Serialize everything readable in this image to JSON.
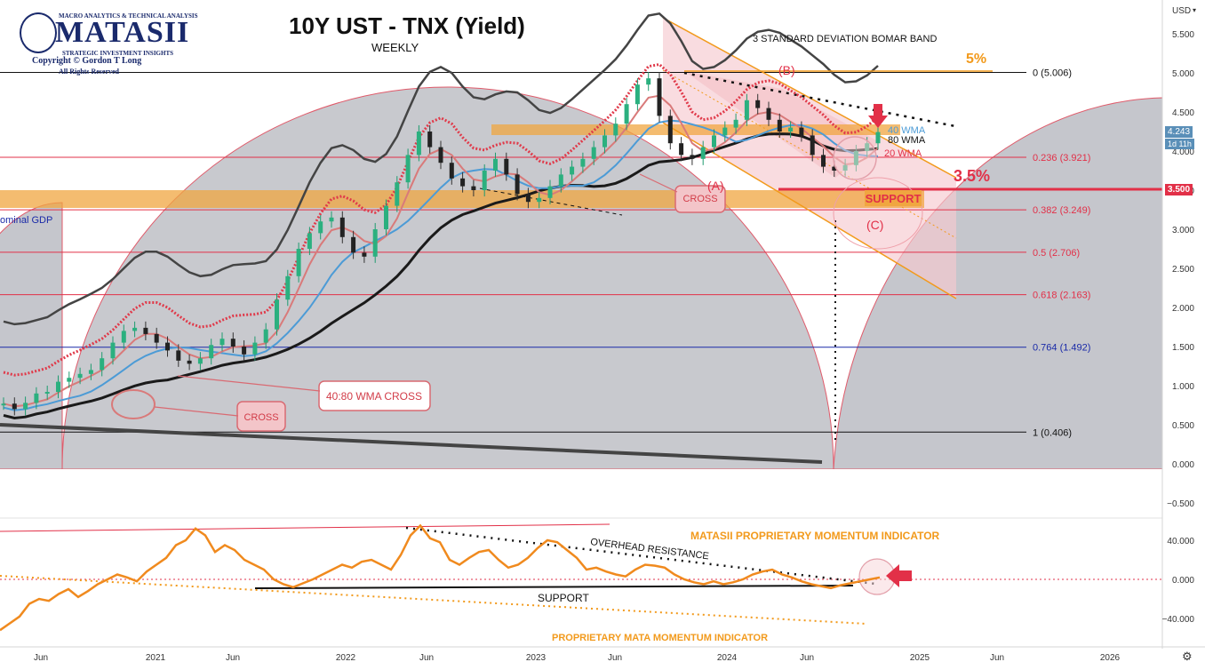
{
  "header": {
    "title": "10Y UST - TNX (Yield)",
    "subtitle": "WEEKLY",
    "logo_top": "MACRO ANALYTICS & TECHNICAL ANALYSIS",
    "logo_name": "MATASII",
    "logo_sub": "STRATEGIC INVESTMENT INSIGHTS",
    "logo_copyright": "Copyright © Gordon T Long",
    "logo_rights": "All Rights Reserved"
  },
  "price_scale": {
    "currency": "USD",
    "last_price": "4.243",
    "countdown": "1d 11h",
    "marked_level": "3.500",
    "colors": {
      "last": "#5a8fb8",
      "marked": "#e23048"
    }
  },
  "chart_data": [
    {
      "type": "line",
      "pane": "price",
      "x_ticks": [
        "Jun",
        "2021",
        "Jun",
        "2022",
        "Jun",
        "2023",
        "Jun",
        "2024",
        "Jun",
        "2025",
        "Jun",
        "2026"
      ],
      "y_ticks": [
        "5.500",
        "5.000",
        "4.500",
        "4.000",
        "3.500",
        "3.000",
        "2.500",
        "2.000",
        "1.500",
        "1.000",
        "0.500",
        "0.000",
        "−0.500"
      ],
      "ylim": [
        -0.5,
        5.5
      ],
      "series_colors": {
        "price": "#1e9b6f",
        "bomar_band": "#444444",
        "wma20": "#d97a7a",
        "wma40": "#4c9bd6",
        "wma80": "#1a1a1a",
        "ema_dots": "#e03a4a"
      },
      "weekly_close": [
        0.77,
        0.7,
        0.78,
        0.9,
        0.92,
        1.05,
        1.1,
        1.15,
        1.2,
        1.35,
        1.55,
        1.7,
        1.74,
        1.66,
        1.55,
        1.45,
        1.32,
        1.28,
        1.35,
        1.52,
        1.6,
        1.5,
        1.4,
        1.55,
        1.72,
        2.1,
        2.4,
        2.75,
        2.95,
        3.1,
        3.15,
        2.9,
        2.7,
        2.65,
        3.0,
        3.3,
        3.6,
        3.95,
        4.25,
        4.05,
        3.85,
        3.65,
        3.55,
        3.5,
        3.75,
        3.9,
        3.7,
        3.45,
        3.35,
        3.4,
        3.55,
        3.7,
        3.8,
        3.9,
        4.05,
        4.2,
        4.35,
        4.6,
        4.85,
        4.93,
        4.45,
        4.1,
        3.95,
        3.9,
        4.05,
        4.2,
        4.3,
        4.4,
        4.65,
        4.55,
        4.4,
        4.25,
        4.3,
        4.2,
        3.95,
        3.8,
        3.75,
        3.82,
        4.0,
        4.1,
        4.243
      ],
      "fib_levels": [
        {
          "label": "0 (5.006)",
          "value": 5.006
        },
        {
          "label": "0.236 (3.921)",
          "value": 3.921
        },
        {
          "label": "0.382 (3.249)",
          "value": 3.249
        },
        {
          "label": "0.5 (2.706)",
          "value": 2.706
        },
        {
          "label": "0.618 (2.163)",
          "value": 2.163
        },
        {
          "label": "0.764 (1.492)",
          "value": 1.492
        },
        {
          "label": "1 (0.406)",
          "value": 0.406
        }
      ]
    },
    {
      "type": "line",
      "pane": "momentum",
      "y_ticks": [
        "40.000",
        "0.000",
        "−40.000"
      ],
      "ylim": [
        -55,
        60
      ],
      "color": "#f08a1e",
      "values": [
        -52,
        -45,
        -38,
        -25,
        -20,
        -22,
        -15,
        -10,
        -18,
        -12,
        -5,
        0,
        5,
        2,
        -2,
        8,
        15,
        22,
        35,
        40,
        52,
        45,
        28,
        35,
        30,
        20,
        15,
        10,
        0,
        -5,
        -8,
        -4,
        0,
        5,
        10,
        15,
        12,
        18,
        20,
        15,
        10,
        25,
        45,
        55,
        42,
        38,
        20,
        15,
        22,
        28,
        30,
        20,
        12,
        15,
        22,
        32,
        40,
        38,
        30,
        22,
        10,
        12,
        8,
        5,
        3,
        10,
        15,
        14,
        12,
        5,
        0,
        -3,
        -5,
        -2,
        -5,
        -3,
        0,
        5,
        8,
        10,
        5,
        2,
        -2,
        -5,
        -7,
        -9,
        -6,
        -4,
        -2,
        0,
        2
      ]
    }
  ],
  "annotations": {
    "bomar": "3 STANDARD DEVIATION BOMAR BAND",
    "five_pct": "5%",
    "three_five_pct": "3.5%",
    "b_label": "(B)",
    "a_label": "(A)",
    "c_label": "(C)",
    "support_box": "SUPPORT",
    "cross_upper": "CROSS",
    "cross_lower": "CROSS",
    "wma_cross": "40:80 WMA CROSS",
    "nominal_gdp": "ominal GDP",
    "wma40": "40 WMA",
    "wma80": "80 WMA",
    "wma20": "20 WMA",
    "matasii_indicator": "MATASII PROPRIETARY MOMENTUM INDICATOR",
    "overhead_resistance": "OVERHEAD RESISTANCE",
    "support_low": "SUPPORT",
    "mata_indicator": "PROPRIETARY MATA MOMENTUM INDICATOR"
  }
}
